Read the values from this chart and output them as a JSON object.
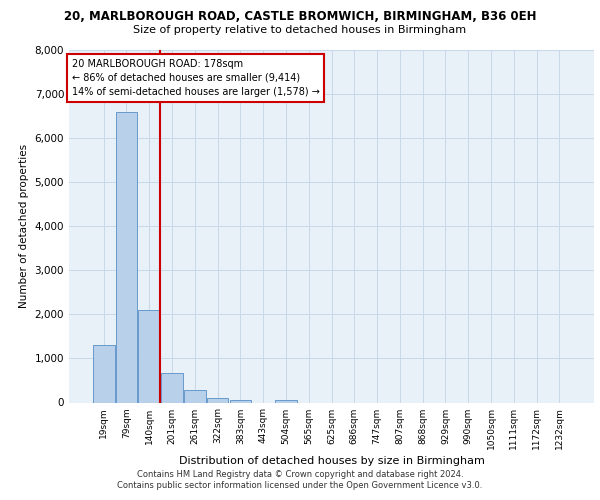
{
  "title_line1": "20, MARLBOROUGH ROAD, CASTLE BROMWICH, BIRMINGHAM, B36 0EH",
  "title_line2": "Size of property relative to detached houses in Birmingham",
  "xlabel": "Distribution of detached houses by size in Birmingham",
  "ylabel": "Number of detached properties",
  "bar_labels": [
    "19sqm",
    "79sqm",
    "140sqm",
    "201sqm",
    "261sqm",
    "322sqm",
    "383sqm",
    "443sqm",
    "504sqm",
    "565sqm",
    "625sqm",
    "686sqm",
    "747sqm",
    "807sqm",
    "868sqm",
    "929sqm",
    "990sqm",
    "1050sqm",
    "1111sqm",
    "1172sqm",
    "1232sqm"
  ],
  "bar_values": [
    1300,
    6600,
    2100,
    680,
    290,
    110,
    60,
    0,
    60,
    0,
    0,
    0,
    0,
    0,
    0,
    0,
    0,
    0,
    0,
    0,
    0
  ],
  "bar_color": "#b8d0ea",
  "bar_edge_color": "#6699cc",
  "vline_x_idx": 2.48,
  "vline_color": "#cc0000",
  "annotation_text": "20 MARLBOROUGH ROAD: 178sqm\n← 86% of detached houses are smaller (9,414)\n14% of semi-detached houses are larger (1,578) →",
  "annotation_box_edgecolor": "#cc0000",
  "ylim": [
    0,
    8000
  ],
  "yticks": [
    0,
    1000,
    2000,
    3000,
    4000,
    5000,
    6000,
    7000,
    8000
  ],
  "grid_color": "#c8d8e8",
  "background_color": "#e8f0f8",
  "footer_line1": "Contains HM Land Registry data © Crown copyright and database right 2024.",
  "footer_line2": "Contains public sector information licensed under the Open Government Licence v3.0."
}
